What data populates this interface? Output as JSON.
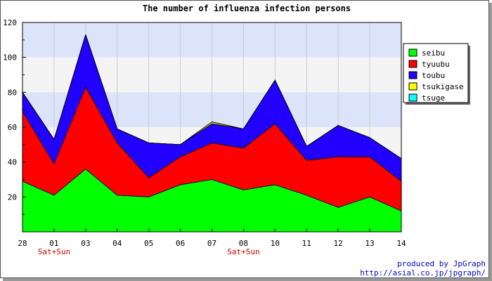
{
  "chart_data": {
    "type": "area",
    "stacked": true,
    "title": "The number of influenza infection persons",
    "xlabel": "",
    "ylabel": "",
    "ylim": [
      0,
      120
    ],
    "yticks": [
      20,
      40,
      60,
      80,
      100,
      120
    ],
    "categories": [
      "28",
      "01",
      "03",
      "04",
      "05",
      "06",
      "07",
      "08",
      "10",
      "11",
      "12",
      "13",
      "14"
    ],
    "day_annotations": [
      {
        "category": "01",
        "text": "Sat+Sun"
      },
      {
        "category": "08",
        "text": "Sat+Sun"
      }
    ],
    "grid": true,
    "legend_position": "right",
    "series": [
      {
        "name": "seibu",
        "color": "#00ff00",
        "values": [
          29,
          21,
          36,
          21,
          20,
          27,
          30,
          24,
          27,
          21,
          14,
          20,
          12
        ]
      },
      {
        "name": "tyuubu",
        "color": "#ff0000",
        "values": [
          40,
          18,
          47,
          30,
          11,
          16,
          21,
          24,
          35,
          20,
          29,
          23,
          17
        ]
      },
      {
        "name": "toubu",
        "color": "#2200ff",
        "values": [
          11,
          14,
          30,
          8,
          20,
          7,
          11,
          11,
          25,
          8,
          18,
          11,
          13
        ]
      },
      {
        "name": "tsukigase",
        "color": "#ffff00",
        "values": [
          0,
          0,
          0,
          0,
          0,
          0,
          1,
          0,
          0,
          0,
          0,
          0,
          0
        ]
      },
      {
        "name": "tsuge",
        "color": "#00ffff",
        "values": [
          0,
          0,
          0,
          0,
          0,
          0,
          0,
          0,
          0,
          0,
          0,
          0,
          0
        ]
      }
    ]
  },
  "credits": {
    "line1": "produced by JpGraph",
    "line2": "http://asial.co.jp/jpgraph/"
  }
}
